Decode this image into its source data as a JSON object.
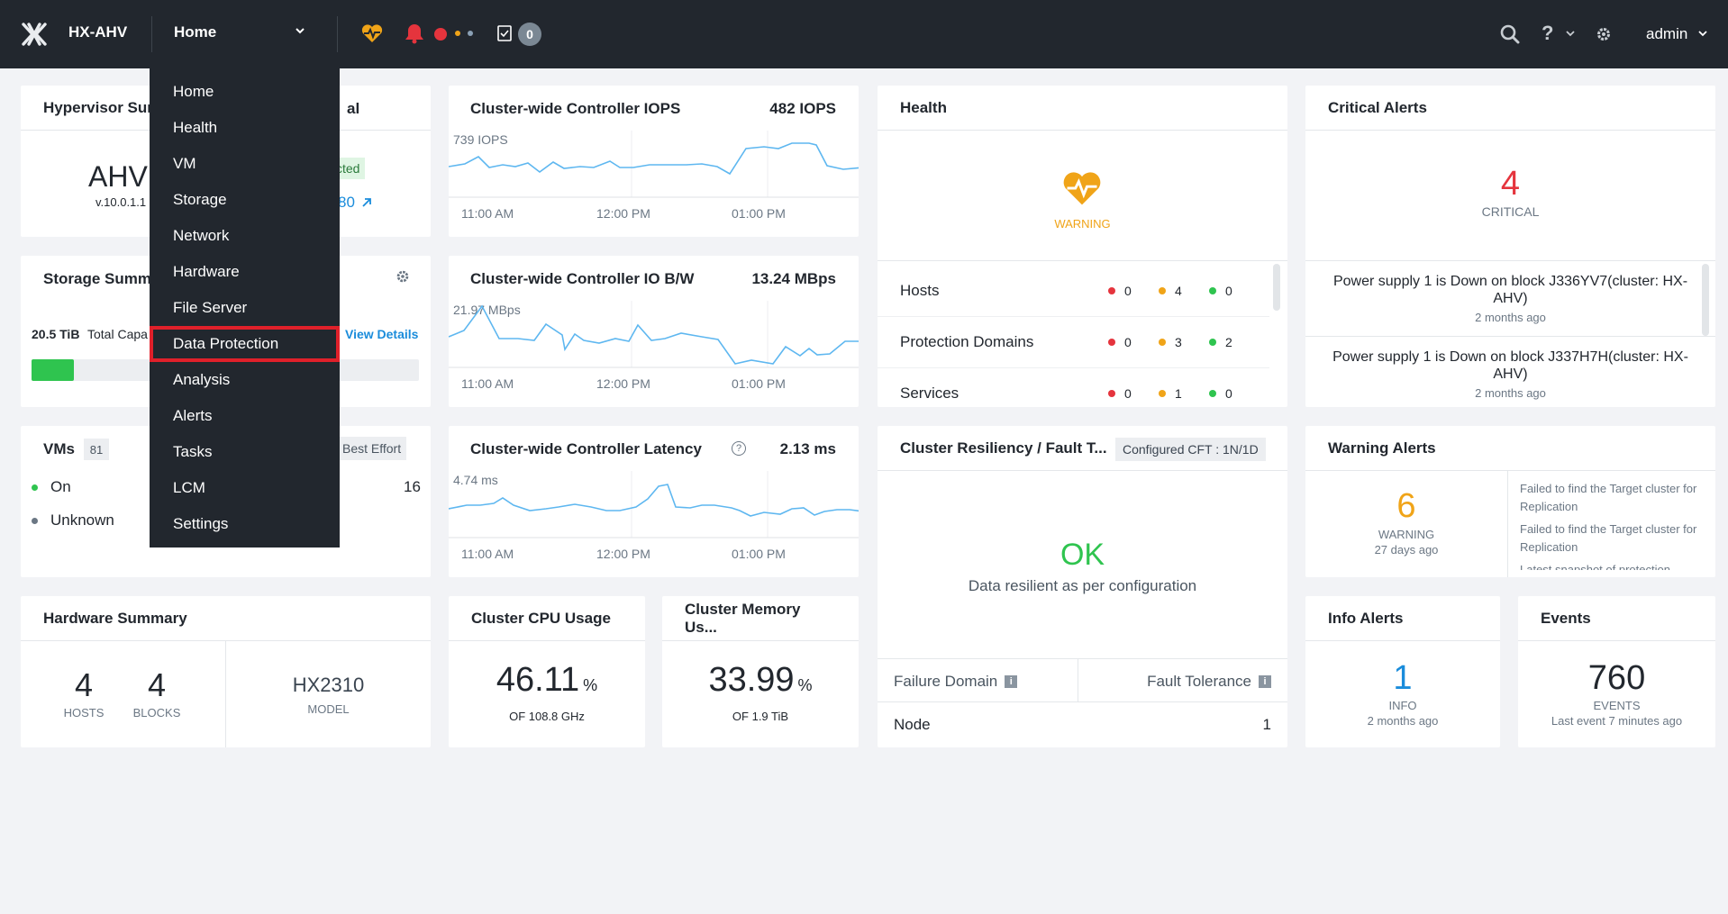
{
  "topbar": {
    "cluster_name": "HX-AHV",
    "page_selector": "Home",
    "task_count": "0",
    "user": "admin",
    "icons": [
      "nutanix-logo-icon",
      "heart-health-icon",
      "bell-icon",
      "checkbox-tasks-icon",
      "search-icon",
      "help-icon",
      "gear-icon"
    ]
  },
  "menu": {
    "items": [
      "Home",
      "Health",
      "VM",
      "Storage",
      "Network",
      "Hardware",
      "File Server",
      "Data Protection",
      "Analysis",
      "Alerts",
      "Tasks",
      "LCM",
      "Settings"
    ],
    "highlighted": "Data Protection"
  },
  "hypervisor": {
    "title_visible": "Hypervisor Sum",
    "title_tail": "al",
    "name": "AHV",
    "version": "v.10.0.1.1",
    "badge_tail": "cted",
    "link_tail": "80"
  },
  "storage": {
    "title_visible": "Storage Summa",
    "capacity_value": "20.5 TiB",
    "capacity_label": "Total Capa",
    "view_details": "View Details",
    "used_fraction": 0.11
  },
  "vms": {
    "title": "VMs",
    "count": "81",
    "badge_tail": "Best Effort",
    "on_label": "On",
    "unknown_label": "Unknown",
    "tail_value": "16"
  },
  "iops": {
    "title": "Cluster-wide Controller IOPS",
    "value": "482 IOPS",
    "peak": "739 IOPS",
    "xticks": [
      "11:00 AM",
      "12:00 PM",
      "01:00 PM"
    ]
  },
  "bw": {
    "title": "Cluster-wide Controller IO B/W",
    "value": "13.24 MBps",
    "peak": "21.97 MBps",
    "xticks": [
      "11:00 AM",
      "12:00 PM",
      "01:00 PM"
    ]
  },
  "latency": {
    "title": "Cluster-wide Controller Latency",
    "value": "2.13 ms",
    "peak": "4.74 ms",
    "xticks": [
      "11:00 AM",
      "12:00 PM",
      "01:00 PM"
    ]
  },
  "health": {
    "title": "Health",
    "status": "WARNING",
    "rows": [
      {
        "label": "Hosts",
        "critical": "0",
        "warning": "4",
        "good": "0"
      },
      {
        "label": "Protection Domains",
        "critical": "0",
        "warning": "3",
        "good": "2"
      },
      {
        "label": "Services",
        "critical": "0",
        "warning": "1",
        "good": "0"
      }
    ],
    "colors": {
      "critical": "#e5343d",
      "warning": "#f0a418",
      "good": "#2fc44f"
    }
  },
  "critical_alerts": {
    "title": "Critical Alerts",
    "count": "4",
    "label": "CRITICAL",
    "items": [
      {
        "text": "Power supply 1 is Down on block J336YV7(cluster: HX-AHV)",
        "time": "2 months ago"
      },
      {
        "text": "Power supply 1 is Down on block J337H7H(cluster: HX-AHV)",
        "time": "2 months ago"
      }
    ]
  },
  "resiliency": {
    "title": "Cluster Resiliency / Fault T...",
    "badge": "Configured CFT : 1N/1D",
    "status": "OK",
    "message": "Data resilient as per configuration",
    "failure_domain_label": "Failure Domain",
    "fault_tolerance_label": "Fault Tolerance",
    "node_label": "Node",
    "node_value": "1"
  },
  "warning_alerts": {
    "title": "Warning Alerts",
    "count": "6",
    "label": "WARNING",
    "time": "27 days ago",
    "items": [
      "Failed to find the Target cluster for Replication",
      "Failed to find the Target cluster for Replication",
      "Latest snapshot of protection"
    ]
  },
  "hardware": {
    "title": "Hardware Summary",
    "hosts": "4",
    "hosts_label": "HOSTS",
    "blocks": "4",
    "blocks_label": "BLOCKS",
    "model": "HX2310",
    "model_label": "MODEL"
  },
  "cpu": {
    "title": "Cluster CPU Usage",
    "value": "46.11",
    "unit": "%",
    "of": "OF 108.8 GHz"
  },
  "memory": {
    "title": "Cluster Memory Us...",
    "value": "33.99",
    "unit": "%",
    "of": "OF 1.9 TiB"
  },
  "info_alerts": {
    "title": "Info Alerts",
    "count": "1",
    "label": "INFO",
    "time": "2 months ago"
  },
  "events": {
    "title": "Events",
    "count": "760",
    "label": "EVENTS",
    "time": "Last event 7 minutes ago"
  }
}
